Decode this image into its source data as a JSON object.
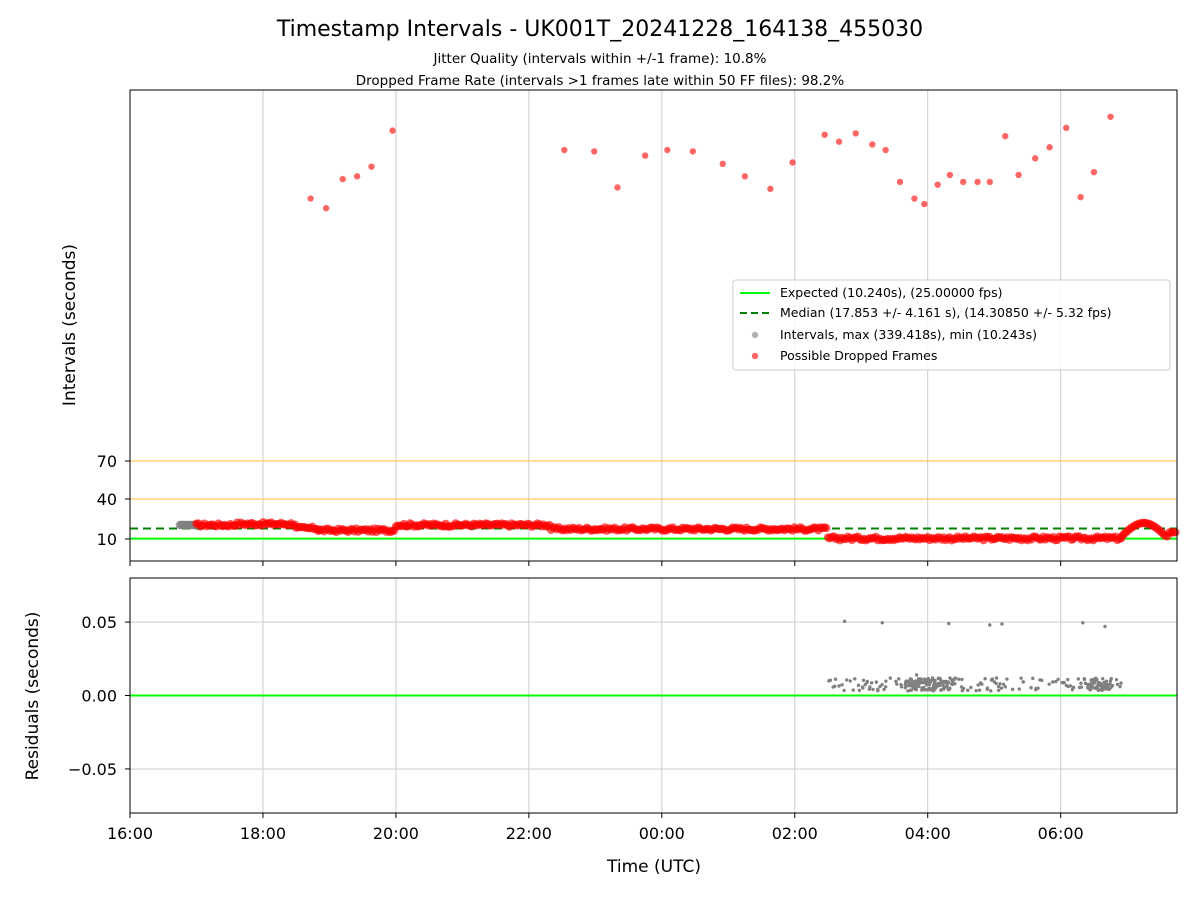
{
  "title": "Timestamp Intervals - UK001T_20241228_164138_455030",
  "subtitle_1": "Jitter Quality (intervals within +/-1 frame): 10.8%",
  "subtitle_2": "Dropped Frame Rate (intervals >1 frames late within 50 FF files): 98.2%",
  "colors": {
    "expected": "#00ff00",
    "median": "#008000",
    "threshold": "#ffc44d",
    "grid": "#cccccc",
    "interval": "#808080",
    "dropped": "#ff0000"
  },
  "chart_data": [
    {
      "type": "scatter",
      "ylabel": "Intervals (seconds)",
      "x_range_hours": [
        16.0,
        31.75
      ],
      "y_ticks": [
        10,
        40,
        70
      ],
      "y_threshold_lines": [
        40,
        70
      ],
      "grid_x": true,
      "legend_placement": "center-right",
      "legend": [
        "Expected (10.240s), (25.00000 fps)",
        "Median (17.853 +/- 4.161 s), (14.30850 +/- 5.32 fps)",
        "Intervals, max (339.418s), min (10.243s)",
        "Possible Dropped Frames"
      ],
      "expected_interval": 10.24,
      "median_interval": 17.853,
      "series": [
        {
          "name": "Intervals, max (339.418s), min (10.243s)",
          "segments": [
            {
              "x_start": "16:45",
              "x_end": "17:00",
              "y": 20.5
            }
          ]
        },
        {
          "name": "Possible Dropped Frames",
          "segments": [
            {
              "x_start": "17:00",
              "x_end": "17:35",
              "y": 20.5
            },
            {
              "x_start": "17:35",
              "x_end": "18:30",
              "y": 21.3
            },
            {
              "x_start": "18:30",
              "x_end": "18:50",
              "y": 18.0
            },
            {
              "x_start": "18:50",
              "x_end": "20:00",
              "y": 16.5
            },
            {
              "x_start": "20:00",
              "x_end": "22:20",
              "y": 20.5
            },
            {
              "x_start": "22:20",
              "x_end": "02:30",
              "y": 17.5
            },
            {
              "x_start": "02:30",
              "x_end": "06:55",
              "y": 10.6
            },
            {
              "x_start": "06:55",
              "x_end": "07:45",
              "y": 15.5
            }
          ],
          "outliers": [
            {
              "x": "18:43",
              "y": 259
            },
            {
              "x": "18:57",
              "y": 252
            },
            {
              "x": "19:12",
              "y": 273
            },
            {
              "x": "19:25",
              "y": 275
            },
            {
              "x": "19:38",
              "y": 282
            },
            {
              "x": "19:57",
              "y": 308
            },
            {
              "x": "22:32",
              "y": 294
            },
            {
              "x": "22:59",
              "y": 293
            },
            {
              "x": "23:20",
              "y": 267
            },
            {
              "x": "23:45",
              "y": 290
            },
            {
              "x": "00:05",
              "y": 294
            },
            {
              "x": "00:28",
              "y": 293
            },
            {
              "x": "00:55",
              "y": 284
            },
            {
              "x": "01:15",
              "y": 275
            },
            {
              "x": "01:38",
              "y": 266
            },
            {
              "x": "01:58",
              "y": 285
            },
            {
              "x": "02:27",
              "y": 305
            },
            {
              "x": "02:40",
              "y": 300
            },
            {
              "x": "02:55",
              "y": 306
            },
            {
              "x": "03:10",
              "y": 298
            },
            {
              "x": "03:22",
              "y": 294
            },
            {
              "x": "03:35",
              "y": 271
            },
            {
              "x": "03:48",
              "y": 259
            },
            {
              "x": "03:57",
              "y": 255
            },
            {
              "x": "04:09",
              "y": 269
            },
            {
              "x": "04:20",
              "y": 276
            },
            {
              "x": "04:32",
              "y": 271
            },
            {
              "x": "04:45",
              "y": 271
            },
            {
              "x": "04:56",
              "y": 271
            },
            {
              "x": "05:10",
              "y": 304
            },
            {
              "x": "05:22",
              "y": 276
            },
            {
              "x": "05:37",
              "y": 288
            },
            {
              "x": "05:50",
              "y": 296
            },
            {
              "x": "06:05",
              "y": 310
            },
            {
              "x": "06:18",
              "y": 260
            },
            {
              "x": "06:30",
              "y": 278
            },
            {
              "x": "06:45",
              "y": 318
            }
          ]
        }
      ]
    },
    {
      "type": "scatter",
      "xlabel": "Time (UTC)",
      "ylabel": "Residuals (seconds)",
      "x_ticks": [
        "16:00",
        "18:00",
        "20:00",
        "22:00",
        "00:00",
        "02:00",
        "04:00",
        "06:00"
      ],
      "y_ticks": [
        "−0.05",
        "0.00",
        "0.05"
      ],
      "y_range": [
        -0.08,
        0.08
      ],
      "grid": true,
      "zero_line": 0,
      "series": [
        {
          "name": "Residuals",
          "band": {
            "x_start": "02:30",
            "x_end": "06:55",
            "y_min": 0.003,
            "y_max": 0.012
          },
          "outliers": [
            {
              "x": "02:45",
              "y": 0.0505
            },
            {
              "x": "03:19",
              "y": 0.0495
            },
            {
              "x": "04:19",
              "y": 0.049
            },
            {
              "x": "04:56",
              "y": 0.048
            },
            {
              "x": "05:07",
              "y": 0.0487
            },
            {
              "x": "06:20",
              "y": 0.0495
            },
            {
              "x": "06:40",
              "y": 0.047
            },
            {
              "x": "03:50",
              "y": 0.014
            }
          ]
        }
      ]
    }
  ]
}
